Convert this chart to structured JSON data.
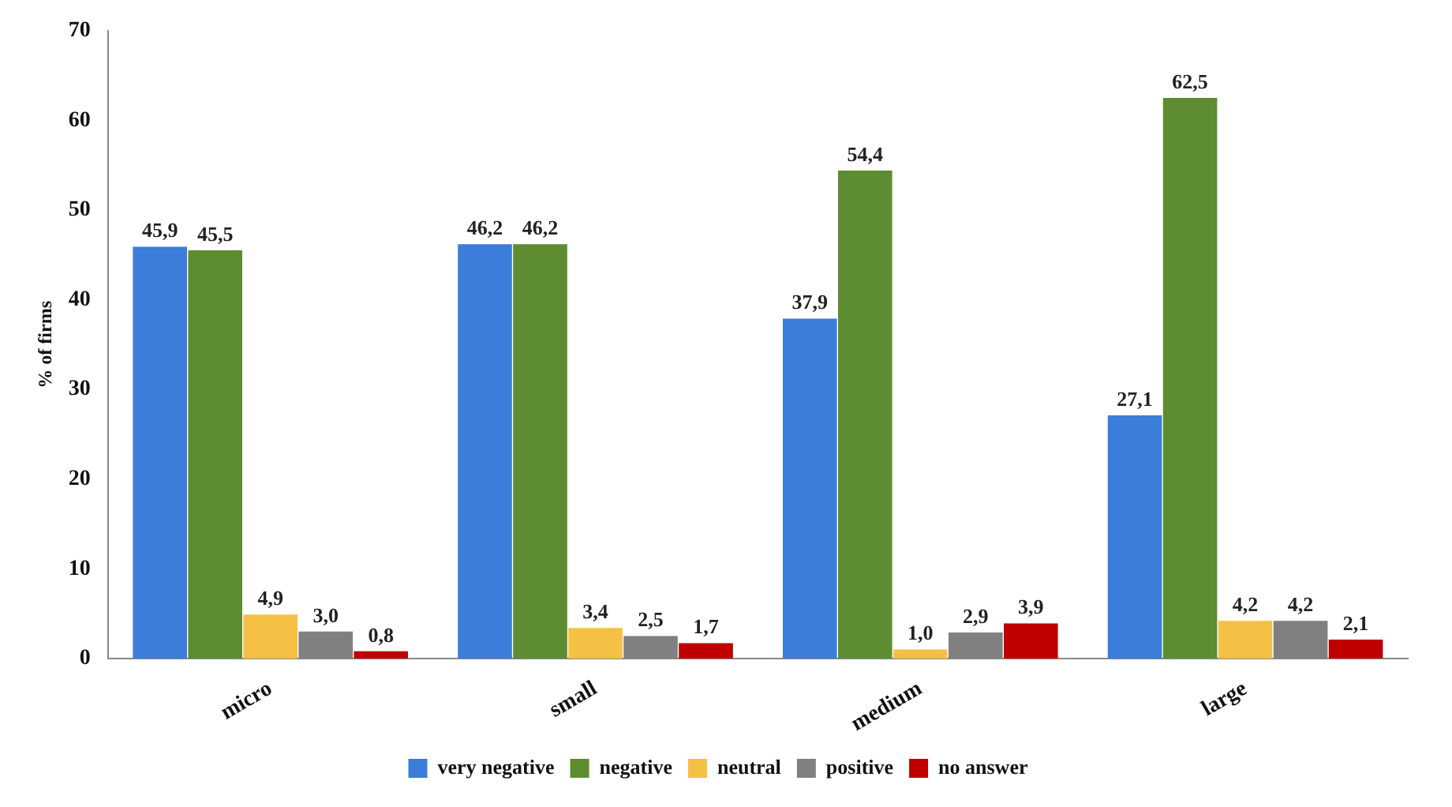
{
  "chart_data": {
    "type": "bar",
    "ylabel": "% of firms",
    "categories": [
      "micro",
      "small",
      "medium",
      "large"
    ],
    "series": [
      {
        "name": "very negative",
        "color": "#3b7dd8",
        "values": [
          45.9,
          46.2,
          37.9,
          27.1
        ],
        "value_labels": [
          "45,9",
          "46,2",
          "37,9",
          "27,1"
        ]
      },
      {
        "name": "negative",
        "color": "#5e8c31",
        "values": [
          45.5,
          46.2,
          54.4,
          62.5
        ],
        "value_labels": [
          "45,5",
          "46,2",
          "54,4",
          "62,5"
        ]
      },
      {
        "name": "neutral",
        "color": "#f4c145",
        "values": [
          4.9,
          3.4,
          1.0,
          4.2
        ],
        "value_labels": [
          "4,9",
          "3,4",
          "1,0",
          "4,2"
        ]
      },
      {
        "name": "positive",
        "color": "#808080",
        "values": [
          3.0,
          2.5,
          2.9,
          4.2
        ],
        "value_labels": [
          "3,0",
          "2,5",
          "2,9",
          "4,2"
        ]
      },
      {
        "name": "no answer",
        "color": "#c00000",
        "values": [
          0.8,
          1.7,
          3.9,
          2.1
        ],
        "value_labels": [
          "0,8",
          "1,7",
          "3,9",
          "2,1"
        ]
      }
    ],
    "ylim": [
      0,
      70
    ],
    "yticks": [
      0,
      10,
      20,
      30,
      40,
      50,
      60,
      70
    ],
    "grid": false,
    "legend": "bottom"
  }
}
